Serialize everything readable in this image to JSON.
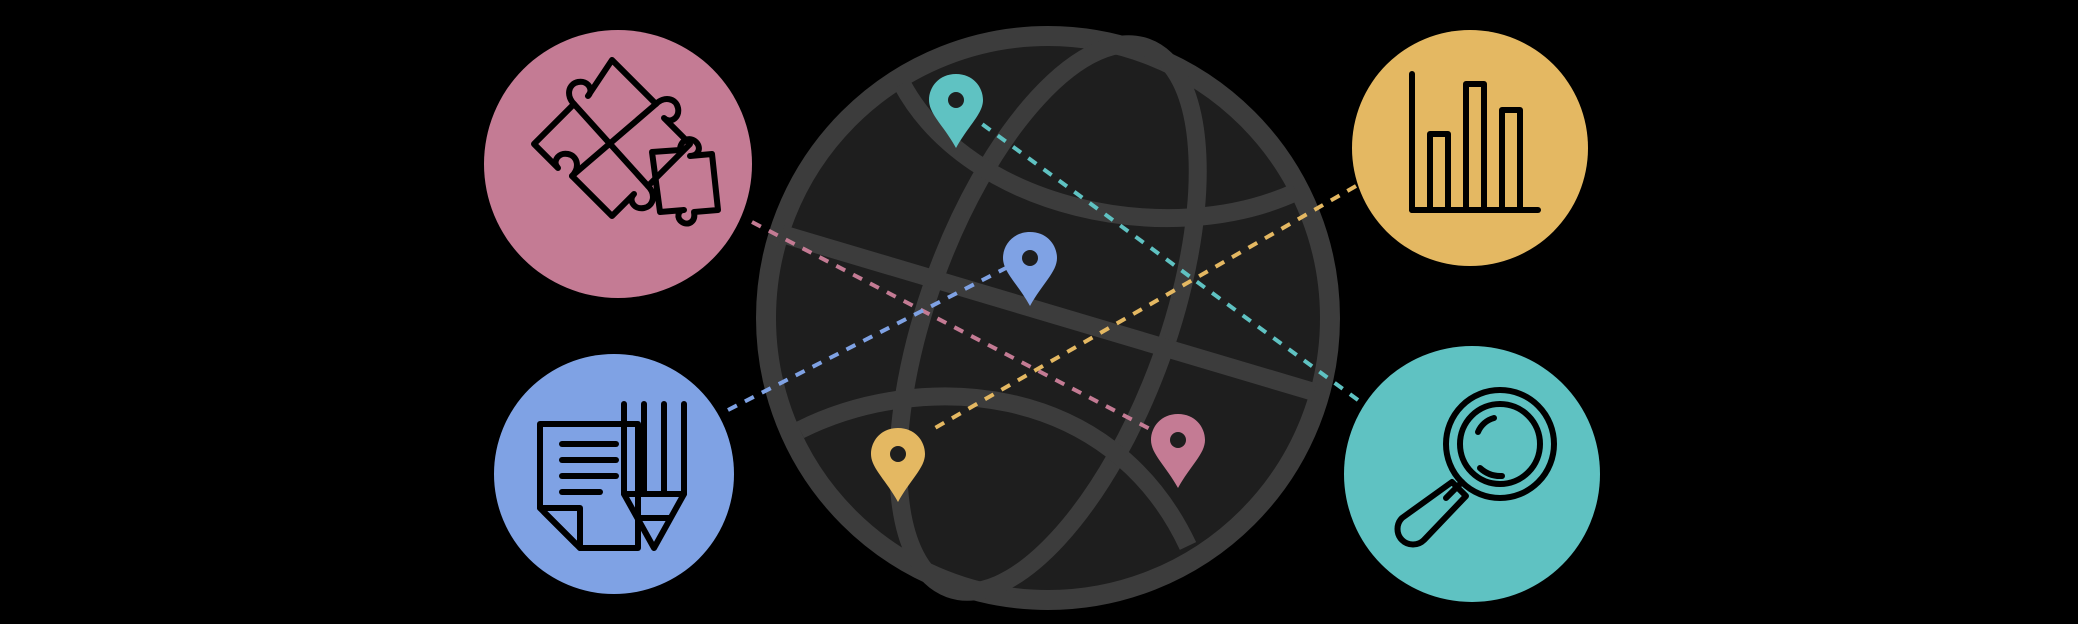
{
  "colors": {
    "background": "#000000",
    "globe_fill": "#1e1e1e",
    "globe_stroke": "#3c3c3c",
    "icon_stroke": "#000000",
    "pink": "#c47b94",
    "blue": "#7fa2e4",
    "gold": "#e4b862",
    "teal": "#5fc2c2"
  },
  "diagram": {
    "center_icon": "globe-icon",
    "nodes": [
      {
        "id": "puzzle",
        "icon": "puzzle-icon",
        "color": "pink",
        "position": "top-left"
      },
      {
        "id": "document",
        "icon": "document-pencil-icon",
        "color": "blue",
        "position": "bottom-left"
      },
      {
        "id": "chart",
        "icon": "bar-chart-icon",
        "color": "gold",
        "position": "top-right"
      },
      {
        "id": "search",
        "icon": "magnifier-icon",
        "color": "teal",
        "position": "bottom-right"
      }
    ],
    "pins": [
      {
        "id": "teal-pin",
        "icon": "location-pin-icon",
        "color": "teal"
      },
      {
        "id": "blue-pin",
        "icon": "location-pin-icon",
        "color": "blue"
      },
      {
        "id": "gold-pin",
        "icon": "location-pin-icon",
        "color": "gold"
      },
      {
        "id": "pink-pin",
        "icon": "location-pin-icon",
        "color": "pink"
      }
    ],
    "connections": [
      {
        "from": "puzzle",
        "to": "pink-pin",
        "style": "dashed",
        "color": "pink"
      },
      {
        "from": "document",
        "to": "blue-pin",
        "style": "dashed",
        "color": "blue"
      },
      {
        "from": "chart",
        "to": "gold-pin",
        "style": "dashed",
        "color": "gold"
      },
      {
        "from": "search",
        "to": "teal-pin",
        "style": "dashed",
        "color": "teal"
      }
    ]
  }
}
